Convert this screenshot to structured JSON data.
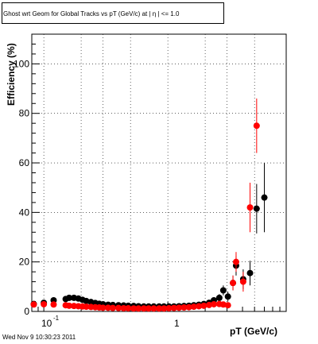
{
  "chart_data": {
    "type": "scatter",
    "title": "Ghost wrt Geom for Global Tracks vs pT (GeV/c) at |  η | <= 1.0",
    "xlabel": "pT (GeV/c)",
    "ylabel": "Efficiency (%)",
    "xscale": "log",
    "xlim": [
      0.08,
      9.0
    ],
    "ylim": [
      0,
      112
    ],
    "grid": true,
    "yticks": [
      0,
      20,
      40,
      60,
      80,
      100
    ],
    "xtick_labels": [
      "10",
      "-1",
      "1"
    ],
    "series": [
      {
        "color": "#000000",
        "points": [
          [
            0.083,
            3.0,
            1.2
          ],
          [
            0.1,
            3.5,
            1.0
          ],
          [
            0.12,
            4.5,
            0.8
          ],
          [
            0.15,
            5.0,
            0.8
          ],
          [
            0.16,
            5.5,
            0.8
          ],
          [
            0.175,
            5.5,
            0.7
          ],
          [
            0.19,
            5.2,
            0.7
          ],
          [
            0.205,
            4.7,
            0.6
          ],
          [
            0.22,
            4.2,
            0.6
          ],
          [
            0.24,
            3.8,
            0.6
          ],
          [
            0.26,
            3.4,
            0.5
          ],
          [
            0.28,
            3.1,
            0.5
          ],
          [
            0.3,
            2.9,
            0.5
          ],
          [
            0.33,
            2.7,
            0.5
          ],
          [
            0.36,
            2.6,
            0.5
          ],
          [
            0.4,
            2.5,
            0.5
          ],
          [
            0.44,
            2.4,
            0.5
          ],
          [
            0.48,
            2.3,
            0.5
          ],
          [
            0.53,
            2.2,
            0.5
          ],
          [
            0.58,
            2.1,
            0.5
          ],
          [
            0.64,
            2.0,
            0.5
          ],
          [
            0.7,
            2.0,
            0.5
          ],
          [
            0.77,
            2.0,
            0.5
          ],
          [
            0.85,
            2.0,
            0.5
          ],
          [
            0.93,
            2.0,
            0.5
          ],
          [
            1.02,
            2.0,
            0.5
          ],
          [
            1.12,
            2.0,
            0.5
          ],
          [
            1.23,
            2.1,
            0.5
          ],
          [
            1.35,
            2.2,
            0.5
          ],
          [
            1.48,
            2.3,
            0.6
          ],
          [
            1.62,
            2.5,
            0.6
          ],
          [
            1.78,
            2.7,
            0.7
          ],
          [
            1.95,
            3.0,
            0.8
          ],
          [
            2.15,
            3.5,
            1.0
          ],
          [
            2.35,
            4.5,
            1.2
          ],
          [
            2.6,
            5.5,
            1.5
          ],
          [
            2.8,
            8.5,
            2.0
          ],
          [
            3.05,
            6.0,
            2.0
          ],
          [
            3.35,
            11.5,
            3.0
          ],
          [
            3.55,
            18.5,
            4.0
          ],
          [
            4.05,
            13.0,
            4.0
          ],
          [
            4.6,
            15.5,
            5.0
          ],
          [
            5.2,
            41.5,
            10.0
          ],
          [
            6.0,
            46.0,
            14.0
          ]
        ]
      },
      {
        "color": "#ff0000",
        "points": [
          [
            0.083,
            2.8,
            1.0
          ],
          [
            0.1,
            2.9,
            0.8
          ],
          [
            0.12,
            2.8,
            0.6
          ],
          [
            0.15,
            2.5,
            0.5
          ],
          [
            0.16,
            2.3,
            0.5
          ],
          [
            0.175,
            2.2,
            0.5
          ],
          [
            0.19,
            2.1,
            0.5
          ],
          [
            0.205,
            2.0,
            0.5
          ],
          [
            0.22,
            1.9,
            0.5
          ],
          [
            0.24,
            1.8,
            0.5
          ],
          [
            0.26,
            1.7,
            0.5
          ],
          [
            0.28,
            1.6,
            0.5
          ],
          [
            0.3,
            1.5,
            0.5
          ],
          [
            0.33,
            1.5,
            0.5
          ],
          [
            0.36,
            1.4,
            0.5
          ],
          [
            0.4,
            1.4,
            0.5
          ],
          [
            0.44,
            1.3,
            0.5
          ],
          [
            0.48,
            1.3,
            0.5
          ],
          [
            0.53,
            1.2,
            0.5
          ],
          [
            0.58,
            1.2,
            0.5
          ],
          [
            0.64,
            1.2,
            0.5
          ],
          [
            0.7,
            1.2,
            0.5
          ],
          [
            0.77,
            1.2,
            0.5
          ],
          [
            0.85,
            1.2,
            0.5
          ],
          [
            0.93,
            1.2,
            0.5
          ],
          [
            1.02,
            1.3,
            0.5
          ],
          [
            1.12,
            1.4,
            0.5
          ],
          [
            1.23,
            1.5,
            0.5
          ],
          [
            1.35,
            1.6,
            0.5
          ],
          [
            1.48,
            1.7,
            0.5
          ],
          [
            1.62,
            1.9,
            0.5
          ],
          [
            1.78,
            2.1,
            0.6
          ],
          [
            1.95,
            2.3,
            0.6
          ],
          [
            2.15,
            2.6,
            0.7
          ],
          [
            2.35,
            2.9,
            0.8
          ],
          [
            2.6,
            3.0,
            1.0
          ],
          [
            2.8,
            2.8,
            1.0
          ],
          [
            3.05,
            2.5,
            1.0
          ],
          [
            3.35,
            11.5,
            3.0
          ],
          [
            3.55,
            20.0,
            4.0
          ],
          [
            4.05,
            12.0,
            4.0
          ],
          [
            4.6,
            42.0,
            10.0
          ],
          [
            5.2,
            75.0,
            11.0
          ]
        ]
      }
    ]
  },
  "footer": {
    "timestamp": "Wed Nov  9 10:30:23 2011"
  }
}
